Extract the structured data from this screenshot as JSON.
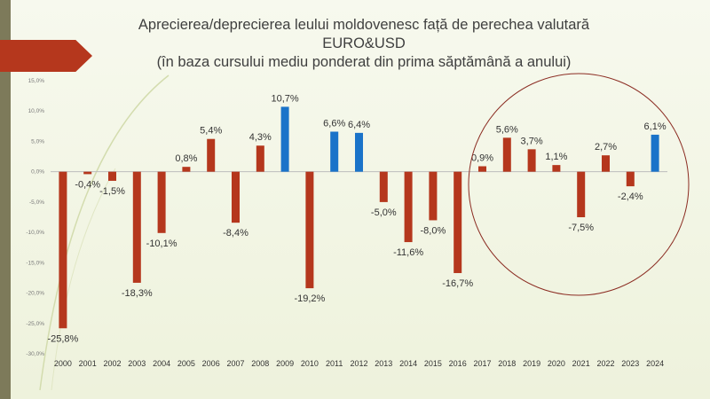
{
  "chart_data": {
    "type": "bar",
    "title": [
      "Aprecierea/deprecierea leului moldovenesc față de perechea valutară",
      "EURO&USD",
      "(în baza cursului mediu ponderat din prima săptămână a anului)"
    ],
    "categories": [
      "2000",
      "2001",
      "2002",
      "2003",
      "2004",
      "2005",
      "2006",
      "2007",
      "2008",
      "2009",
      "2010",
      "2011",
      "2012",
      "2013",
      "2014",
      "2015",
      "2016",
      "2017",
      "2018",
      "2019",
      "2020",
      "2021",
      "2022",
      "2023",
      "2024"
    ],
    "values": [
      -25.8,
      -0.4,
      -1.5,
      -18.3,
      -10.1,
      0.8,
      5.4,
      -8.4,
      4.3,
      10.7,
      -19.2,
      6.6,
      6.4,
      -5.0,
      -11.6,
      -8.0,
      -16.7,
      0.9,
      5.6,
      3.7,
      1.1,
      -7.5,
      2.7,
      -2.4,
      6.1
    ],
    "labels": [
      "-25,8%",
      "-0,4%",
      "-1,5%",
      "-18,3%",
      "-10,1%",
      "0,8%",
      "5,4%",
      "-8,4%",
      "4,3%",
      "10,7%",
      "-19,2%",
      "6,6%",
      "6,4%",
      "-5,0%",
      "-11,6%",
      "-8,0%",
      "-16,7%",
      "0,9%",
      "5,6%",
      "3,7%",
      "1,1%",
      "-7,5%",
      "2,7%",
      "-2,4%",
      "6,1%"
    ],
    "highlight": [
      "2009",
      "2011",
      "2012",
      "2024"
    ],
    "ylim": [
      -30,
      15
    ],
    "yticks": [
      15,
      10,
      5,
      0,
      -5,
      -10,
      -15,
      -20,
      -25,
      -30
    ],
    "ytick_labels": [
      "15,0%",
      "10,0%",
      "5,0%",
      "0,0%",
      "-5,0%",
      "-10,0%",
      "-15,0%",
      "-20,0%",
      "-25,0%",
      "-30,0%"
    ],
    "xlabel": "",
    "ylabel": "",
    "colors": {
      "default": "#b5371d",
      "highlight": "#1a73c9",
      "circle": "#8b2c22"
    }
  }
}
